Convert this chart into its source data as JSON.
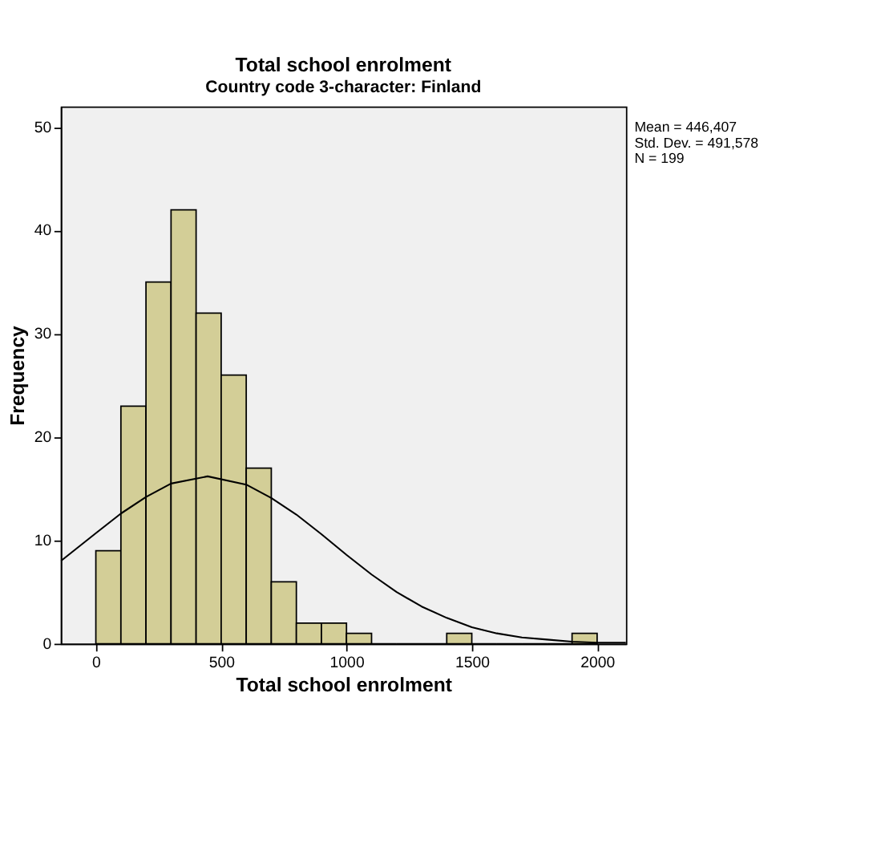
{
  "chart_data": {
    "type": "histogram",
    "title": "Total school enrolment",
    "subtitle": "Country code 3-character: Finland",
    "xlabel": "Total school enrolment",
    "ylabel": "Frequency",
    "bins": [
      0,
      100,
      200,
      300,
      400,
      500,
      600,
      700,
      800,
      900,
      1000,
      1100,
      1200,
      1300,
      1400,
      1500,
      1600,
      1700,
      1800,
      1900,
      2000
    ],
    "values": [
      9,
      23,
      35,
      42,
      32,
      26,
      17,
      6,
      2,
      2,
      1,
      0,
      0,
      0,
      1,
      0,
      0,
      0,
      0,
      1
    ],
    "color": "#d3ce97",
    "series": [
      {
        "type": "line",
        "color": "#000000",
        "x": [
          -140,
          0,
          100,
          200,
          300,
          446,
          600,
          700,
          800,
          900,
          1000,
          1100,
          1200,
          1300,
          1400,
          1500,
          1600,
          1700,
          1800,
          1900,
          2000,
          2115
        ],
        "values": [
          8.0,
          10.7,
          12.6,
          14.2,
          15.5,
          16.2,
          15.4,
          14.1,
          12.5,
          10.6,
          8.6,
          6.7,
          5.0,
          3.6,
          2.5,
          1.6,
          1.0,
          0.6,
          0.4,
          0.2,
          0.1,
          0.1
        ]
      }
    ],
    "xlim": [
      -140,
      2115
    ],
    "ylim": [
      0,
      52
    ],
    "xticks": [
      0,
      500,
      1000,
      1500,
      2000
    ],
    "yticks": [
      0,
      10,
      20,
      30,
      40,
      50
    ],
    "grid": false,
    "annotations": [
      "Mean = 446,407",
      "Std. Dev. = 491,578",
      "N = 199"
    ]
  }
}
